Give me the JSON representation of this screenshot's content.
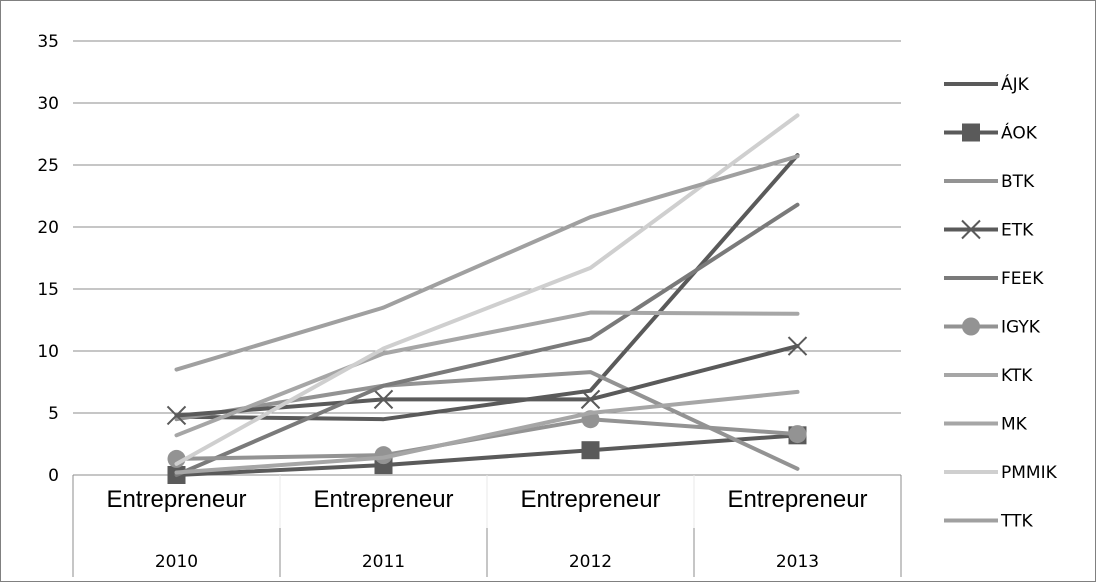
{
  "chart_data": {
    "type": "line",
    "ylim": [
      0,
      35
    ],
    "yticks": [
      "0",
      "5",
      "10",
      "15",
      "20",
      "25",
      "30",
      "35"
    ],
    "categories": [
      {
        "label": "Entrepreneur",
        "year": "2010"
      },
      {
        "label": "Entrepreneur",
        "year": "2011"
      },
      {
        "label": "Entrepreneur",
        "year": "2012"
      },
      {
        "label": "Entrepreneur",
        "year": "2013"
      }
    ],
    "legend_position": "right",
    "grid": true,
    "series": [
      {
        "name": "ÁJK",
        "color": "#5a5a5a",
        "marker": "none",
        "values": [
          4.7,
          4.5,
          6.8,
          25.8
        ]
      },
      {
        "name": "ÁOK",
        "color": "#5a5a5a",
        "marker": "square",
        "values": [
          0.0,
          0.8,
          2.0,
          3.2
        ]
      },
      {
        "name": "BTK",
        "color": "#939393",
        "marker": "none",
        "values": [
          4.5,
          7.2,
          8.3,
          0.5
        ]
      },
      {
        "name": "ETK",
        "color": "#5a5a5a",
        "marker": "x",
        "values": [
          4.8,
          6.1,
          6.1,
          10.4
        ]
      },
      {
        "name": "FEEK",
        "color": "#7a7a7a",
        "marker": "none",
        "values": [
          0.0,
          7.2,
          11.0,
          21.8
        ]
      },
      {
        "name": "IGYK",
        "color": "#939393",
        "marker": "circle",
        "values": [
          1.3,
          1.6,
          4.5,
          3.3
        ]
      },
      {
        "name": "KTK",
        "color": "#a6a6a6",
        "marker": "none",
        "values": [
          3.2,
          9.8,
          13.1,
          13.0
        ]
      },
      {
        "name": "MK",
        "color": "#a6a6a6",
        "marker": "none",
        "values": [
          0.2,
          1.4,
          5.0,
          6.7
        ]
      },
      {
        "name": "PMMIK",
        "color": "#cfcfcf",
        "marker": "none",
        "values": [
          0.9,
          10.2,
          16.7,
          29.0
        ]
      },
      {
        "name": "TTK",
        "color": "#a0a0a0",
        "marker": "none",
        "values": [
          8.5,
          13.5,
          20.8,
          25.7
        ]
      }
    ]
  }
}
